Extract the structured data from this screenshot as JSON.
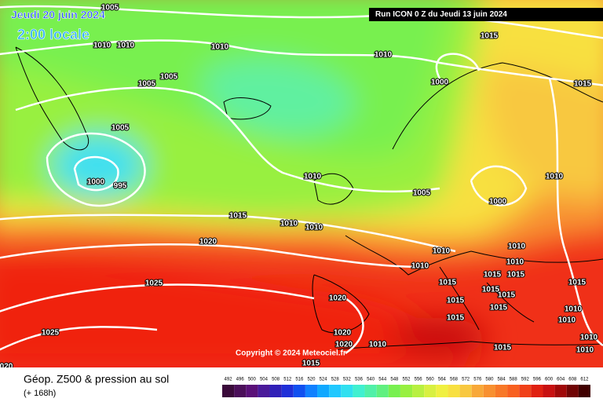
{
  "header": {
    "date": "Jeudi 20 juin 2024",
    "time": "2:00 locale",
    "run": "Run ICON 0 Z du Jeudi 13 juin 2024"
  },
  "copyright": "Copyright © 2024 Meteociel.fr",
  "footer": {
    "title": "Géop. Z500 & pression au sol",
    "lead": "(+ 168h)"
  },
  "isobar_labels": [
    "1005",
    "1010",
    "1010",
    "1010",
    "1005",
    "1005",
    "1005",
    "1000",
    "995",
    "1010",
    "1015",
    "1000",
    "1015",
    "1010",
    "1005",
    "1000",
    "1010",
    "1015",
    "1010",
    "1010",
    "1020",
    "1010",
    "1010",
    "1010",
    "1015",
    "1015",
    "1015",
    "1015",
    "1025",
    "1015",
    "1015",
    "1020",
    "1015",
    "1010",
    "1010",
    "1015",
    "1025",
    "1020",
    "1020",
    "1010",
    "1015",
    "1015",
    "1010",
    "1010",
    "1010",
    "1015",
    "020"
  ],
  "colorbar": {
    "ticks": [
      492,
      496,
      500,
      504,
      508,
      512,
      516,
      520,
      524,
      528,
      532,
      536,
      540,
      544,
      548,
      552,
      556,
      560,
      564,
      568,
      572,
      576,
      580,
      584,
      588,
      592,
      596,
      600,
      604,
      608,
      612
    ],
    "colors": [
      "#3a0a3a",
      "#4b0f5a",
      "#5a1078",
      "#4a1a9a",
      "#3020b8",
      "#1f2fd8",
      "#1050f0",
      "#1080ff",
      "#10a8ff",
      "#20c8ff",
      "#30e0f0",
      "#40f0d0",
      "#50f0a8",
      "#60f080",
      "#78f050",
      "#98f040",
      "#b8f040",
      "#d8f040",
      "#f0f040",
      "#f8e040",
      "#f8c840",
      "#f8a838",
      "#f89030",
      "#f87828",
      "#f86020",
      "#f04018",
      "#e02010",
      "#c81010",
      "#a00808",
      "#700404",
      "#400000"
    ]
  }
}
